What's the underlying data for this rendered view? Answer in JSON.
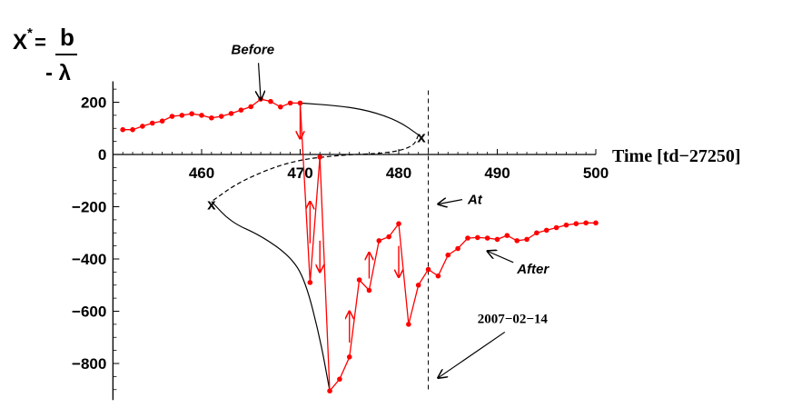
{
  "chart_data": {
    "type": "line",
    "formula": {
      "lhs": "X",
      "superscript": "*",
      "equals": "=",
      "numerator": "b",
      "denominator": "- λ"
    },
    "xlabel": "Time [td−27250]",
    "ylabel": "",
    "xlim": [
      451,
      500
    ],
    "ylim": [
      -940,
      280
    ],
    "x_ticks": [
      460,
      470,
      480,
      490,
      500
    ],
    "y_ticks": [
      200,
      0,
      -200,
      -400,
      -600,
      -800
    ],
    "y_tick_labels": [
      "200",
      "0",
      "−200",
      "−400",
      "−600",
      "−800"
    ],
    "series": [
      {
        "color": "#ff0000",
        "points": [
          {
            "x": 452,
            "y": 95
          },
          {
            "x": 453,
            "y": 95
          },
          {
            "x": 454,
            "y": 108
          },
          {
            "x": 455,
            "y": 120
          },
          {
            "x": 456,
            "y": 128
          },
          {
            "x": 457,
            "y": 146
          },
          {
            "x": 458,
            "y": 150
          },
          {
            "x": 459,
            "y": 156
          },
          {
            "x": 460,
            "y": 150
          },
          {
            "x": 461,
            "y": 140
          },
          {
            "x": 462,
            "y": 146
          },
          {
            "x": 463,
            "y": 157
          },
          {
            "x": 464,
            "y": 170
          },
          {
            "x": 465,
            "y": 183
          },
          {
            "x": 466,
            "y": 212
          },
          {
            "x": 467,
            "y": 203
          },
          {
            "x": 468,
            "y": 182
          },
          {
            "x": 469,
            "y": 197
          },
          {
            "x": 470,
            "y": 197
          },
          {
            "x": 471,
            "y": -490
          },
          {
            "x": 472,
            "y": -10
          },
          {
            "x": 473,
            "y": -905
          },
          {
            "x": 474,
            "y": -860
          },
          {
            "x": 475,
            "y": -775
          },
          {
            "x": 476,
            "y": -480
          },
          {
            "x": 477,
            "y": -520
          },
          {
            "x": 478,
            "y": -330
          },
          {
            "x": 479,
            "y": -315
          },
          {
            "x": 480,
            "y": -265
          },
          {
            "x": 481,
            "y": -650
          },
          {
            "x": 482,
            "y": -500
          },
          {
            "x": 483,
            "y": -440
          },
          {
            "x": 484,
            "y": -465
          },
          {
            "x": 485,
            "y": -385
          },
          {
            "x": 486,
            "y": -360
          },
          {
            "x": 487,
            "y": -320
          },
          {
            "x": 488,
            "y": -318
          },
          {
            "x": 489,
            "y": -320
          },
          {
            "x": 490,
            "y": -325
          },
          {
            "x": 491,
            "y": -310
          },
          {
            "x": 492,
            "y": -330
          },
          {
            "x": 493,
            "y": -325
          },
          {
            "x": 494,
            "y": -300
          },
          {
            "x": 495,
            "y": -290
          },
          {
            "x": 496,
            "y": -280
          },
          {
            "x": 497,
            "y": -270
          },
          {
            "x": 498,
            "y": -265
          },
          {
            "x": 499,
            "y": -262
          },
          {
            "x": 500,
            "y": -262
          }
        ]
      }
    ],
    "red_arrows": [
      {
        "from": {
          "x": 470,
          "y": 190
        },
        "to": {
          "x": 470,
          "y": 60
        }
      },
      {
        "from": {
          "x": 471,
          "y": -340
        },
        "to": {
          "x": 471,
          "y": -180
        }
      },
      {
        "from": {
          "x": 472,
          "y": -330
        },
        "to": {
          "x": 472,
          "y": -450
        }
      },
      {
        "from": {
          "x": 475,
          "y": -720
        },
        "to": {
          "x": 475,
          "y": -600
        }
      },
      {
        "from": {
          "x": 477,
          "y": -475
        },
        "to": {
          "x": 477,
          "y": -375
        }
      },
      {
        "from": {
          "x": 480,
          "y": -350
        },
        "to": {
          "x": 480,
          "y": -470
        }
      }
    ],
    "black_curves": {
      "upper_solid": [
        {
          "x": 470,
          "y": 197
        },
        {
          "x": 474,
          "y": 186
        },
        {
          "x": 477,
          "y": 168
        },
        {
          "x": 480,
          "y": 128
        },
        {
          "x": 482,
          "y": 75
        }
      ],
      "mid_dashed": [
        {
          "x": 482,
          "y": 75
        },
        {
          "x": 481.5,
          "y": 30
        },
        {
          "x": 479,
          "y": 5
        },
        {
          "x": 474,
          "y": -2
        },
        {
          "x": 469,
          "y": -25
        },
        {
          "x": 464,
          "y": -100
        },
        {
          "x": 461,
          "y": -180
        }
      ],
      "lower_solid": [
        {
          "x": 461,
          "y": -180
        },
        {
          "x": 463,
          "y": -260
        },
        {
          "x": 466,
          "y": -310
        },
        {
          "x": 469,
          "y": -390
        },
        {
          "x": 470.5,
          "y": -480
        },
        {
          "x": 472,
          "y": -700
        },
        {
          "x": 473,
          "y": -905
        }
      ]
    },
    "x_markers": [
      {
        "x": 482.3,
        "y": 68,
        "label": "x"
      },
      {
        "x": 461,
        "y": -190,
        "label": "x"
      }
    ],
    "vertical_dashed_line_x": 483,
    "annotations": [
      {
        "text": "Before",
        "label_x": 463,
        "label_y": 385,
        "arrow_to_x": 466,
        "arrow_to_y": 210
      },
      {
        "text": "At",
        "label_x": 487,
        "label_y": -190,
        "arrow_to_x": 484,
        "arrow_to_y": -190
      },
      {
        "text": "After",
        "label_x": 492,
        "label_y": -455,
        "arrow_to_x": 489,
        "arrow_to_y": -370
      },
      {
        "text": "2007−02−14",
        "label_x": 488,
        "label_y": -645,
        "arrow_to_x": 484,
        "arrow_to_y": -855
      }
    ]
  }
}
